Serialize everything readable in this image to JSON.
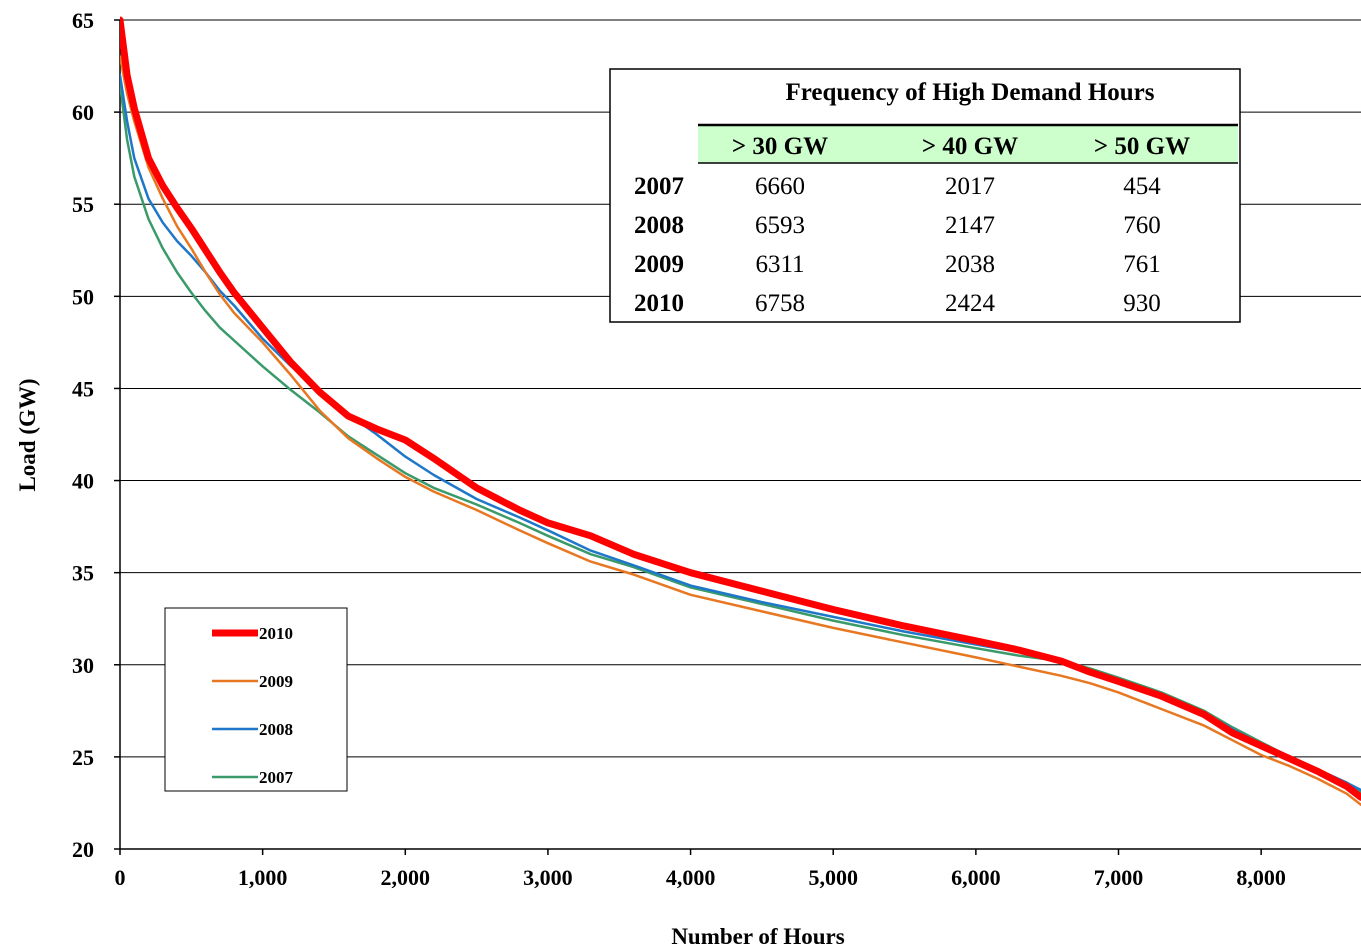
{
  "chart_data": {
    "type": "line",
    "xlabel": "Number of Hours",
    "ylabel": "Load (GW)",
    "xlim": [
      0,
      8700
    ],
    "ylim": [
      20,
      65
    ],
    "x_ticks": [
      0,
      1000,
      2000,
      3000,
      4000,
      5000,
      6000,
      7000,
      8000
    ],
    "x_tick_labels": [
      "0",
      "1,000",
      "2,000",
      "3,000",
      "4,000",
      "5,000",
      "6,000",
      "7,000",
      "8,000"
    ],
    "y_ticks": [
      20,
      25,
      30,
      35,
      40,
      45,
      50,
      55,
      60,
      65
    ],
    "y_tick_labels": [
      "20",
      "25",
      "30",
      "35",
      "40",
      "45",
      "50",
      "55",
      "60",
      "65"
    ],
    "grid": "horizontal",
    "legend_position": "bottom-left",
    "series": [
      {
        "name": "2010",
        "color": "#ff0000",
        "width": 7,
        "x": [
          0,
          50,
          100,
          200,
          300,
          400,
          500,
          600,
          700,
          800,
          1000,
          1200,
          1400,
          1600,
          1800,
          2000,
          2200,
          2500,
          2800,
          3000,
          3300,
          3600,
          4000,
          4500,
          5000,
          5500,
          6000,
          6300,
          6600,
          6800,
          7000,
          7300,
          7600,
          7800,
          8000,
          8200,
          8400,
          8600,
          8700
        ],
        "y": [
          65,
          62,
          60.2,
          57.5,
          56,
          54.8,
          53.7,
          52.5,
          51.3,
          50.2,
          48.3,
          46.4,
          44.8,
          43.5,
          42.8,
          42.2,
          41.2,
          39.6,
          38.4,
          37.7,
          37,
          36,
          35,
          34,
          33,
          32.1,
          31.3,
          30.8,
          30.2,
          29.6,
          29.1,
          28.3,
          27.3,
          26.3,
          25.6,
          24.9,
          24.2,
          23.4,
          22.8
        ]
      },
      {
        "name": "2009",
        "color": "#e87722",
        "width": 2.5,
        "x": [
          0,
          50,
          100,
          200,
          300,
          400,
          500,
          600,
          700,
          800,
          1000,
          1200,
          1400,
          1600,
          1800,
          2000,
          2200,
          2500,
          2800,
          3000,
          3300,
          3600,
          4000,
          4500,
          5000,
          5500,
          6000,
          6300,
          6600,
          6800,
          7000,
          7300,
          7600,
          7800,
          8000,
          8200,
          8400,
          8600,
          8700
        ],
        "y": [
          63,
          61,
          59.5,
          57,
          55.3,
          53.8,
          52.6,
          51.3,
          50.1,
          49.1,
          47.5,
          45.7,
          43.8,
          42.3,
          41.2,
          40.2,
          39.4,
          38.4,
          37.3,
          36.6,
          35.6,
          34.9,
          33.8,
          32.9,
          32,
          31.2,
          30.4,
          29.9,
          29.4,
          29,
          28.5,
          27.6,
          26.7,
          25.9,
          25.1,
          24.5,
          23.8,
          23,
          22.4
        ]
      },
      {
        "name": "2008",
        "color": "#1f77c9",
        "width": 2.5,
        "x": [
          0,
          50,
          100,
          200,
          300,
          400,
          500,
          600,
          700,
          800,
          1000,
          1200,
          1400,
          1600,
          1800,
          2000,
          2200,
          2500,
          2800,
          3000,
          3300,
          3600,
          4000,
          4500,
          5000,
          5500,
          6000,
          6300,
          6600,
          6800,
          7000,
          7300,
          7600,
          7800,
          8000,
          8200,
          8400,
          8600,
          8700
        ],
        "y": [
          62,
          59.5,
          57.5,
          55.3,
          54,
          53,
          52.2,
          51.3,
          50.3,
          49.5,
          47.7,
          46.2,
          44.8,
          43.6,
          42.5,
          41.3,
          40.3,
          39,
          38,
          37.3,
          36.2,
          35.4,
          34.3,
          33.4,
          32.6,
          31.8,
          31.1,
          30.7,
          30.2,
          29.7,
          29.2,
          28.3,
          27.4,
          26.5,
          25.7,
          25,
          24.3,
          23.6,
          23.2
        ]
      },
      {
        "name": "2007",
        "color": "#3a9a6a",
        "width": 2.5,
        "x": [
          0,
          50,
          100,
          200,
          300,
          400,
          500,
          600,
          700,
          800,
          1000,
          1200,
          1400,
          1600,
          1800,
          2000,
          2200,
          2500,
          2800,
          3000,
          3300,
          3600,
          4000,
          4500,
          5000,
          5500,
          6000,
          6300,
          6600,
          6800,
          7000,
          7300,
          7600,
          7800,
          8000,
          8200,
          8400,
          8600,
          8700
        ],
        "y": [
          61.5,
          58.5,
          56.5,
          54.2,
          52.6,
          51.3,
          50.2,
          49.2,
          48.3,
          47.6,
          46.2,
          44.9,
          43.7,
          42.4,
          41.4,
          40.4,
          39.6,
          38.7,
          37.7,
          37,
          36,
          35.3,
          34.2,
          33.3,
          32.4,
          31.6,
          30.9,
          30.5,
          30.2,
          29.8,
          29.3,
          28.5,
          27.5,
          26.6,
          25.8,
          25,
          24.3,
          23.6,
          23.1
        ]
      }
    ]
  },
  "table": {
    "title": "Frequency of High Demand Hours",
    "header_fill": "#ccffcc",
    "columns": [
      "> 30 GW",
      "> 40 GW",
      "> 50 GW"
    ],
    "rows": [
      {
        "year": "2007",
        "values": [
          "6660",
          "2017",
          "454"
        ]
      },
      {
        "year": "2008",
        "values": [
          "6593",
          "2147",
          "760"
        ]
      },
      {
        "year": "2009",
        "values": [
          "6311",
          "2038",
          "761"
        ]
      },
      {
        "year": "2010",
        "values": [
          "6758",
          "2424",
          "930"
        ]
      }
    ]
  }
}
